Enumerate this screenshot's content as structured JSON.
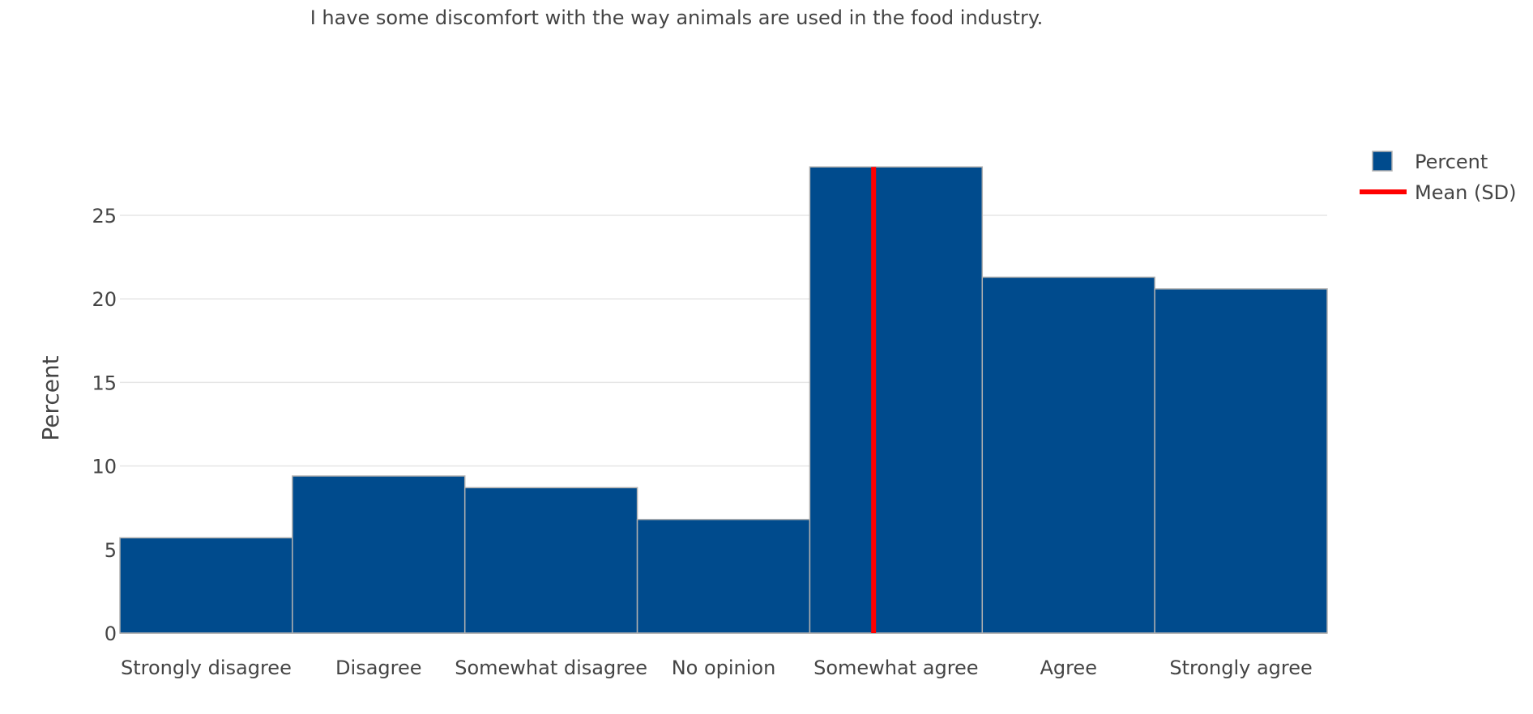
{
  "chart_data": {
    "type": "bar",
    "title": "I have some discomfort with the way animals are used in the food industry.",
    "xlabel": "",
    "ylabel": "Percent",
    "categories": [
      "Strongly disagree",
      "Disagree",
      "Somewhat disagree",
      "No opinion",
      "Somewhat agree",
      "Agree",
      "Strongly agree"
    ],
    "series": [
      {
        "name": "Percent",
        "values": [
          5.7,
          9.4,
          8.7,
          6.8,
          27.9,
          21.3,
          20.6
        ]
      }
    ],
    "mean_line": {
      "name": "Mean (SD)",
      "x": 4.37
    },
    "ylim": [
      0,
      28.2
    ],
    "yticks": [
      0,
      5,
      10,
      15,
      20,
      25
    ],
    "grid": true,
    "legend_position": "top-right",
    "colors": {
      "bar": "#004b8d",
      "bar_edge": "#b0b0b0",
      "mean_line": "#ff0000",
      "grid": "#e6e6e6"
    }
  }
}
